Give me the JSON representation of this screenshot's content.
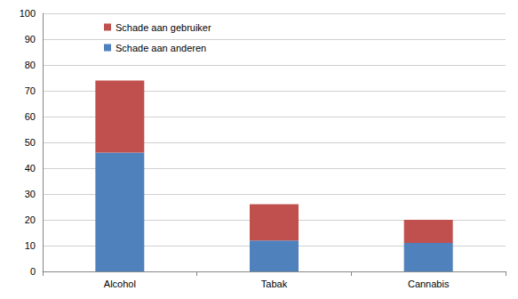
{
  "chart_data": {
    "type": "bar",
    "stacked": true,
    "legend": "top-left",
    "grid": true,
    "categories": [
      "Alcohol",
      "Tabak",
      "Cannabis"
    ],
    "series": [
      {
        "name": "Schade aan anderen",
        "color": "#4f81bd",
        "values": [
          46,
          12,
          11
        ]
      },
      {
        "name": "Schade aan gebruiker",
        "color": "#c0504d",
        "values": [
          28,
          14,
          9
        ]
      }
    ],
    "ylim": [
      0,
      100
    ],
    "yticks": [
      0,
      10,
      20,
      30,
      40,
      50,
      60,
      70,
      80,
      90,
      100
    ]
  }
}
